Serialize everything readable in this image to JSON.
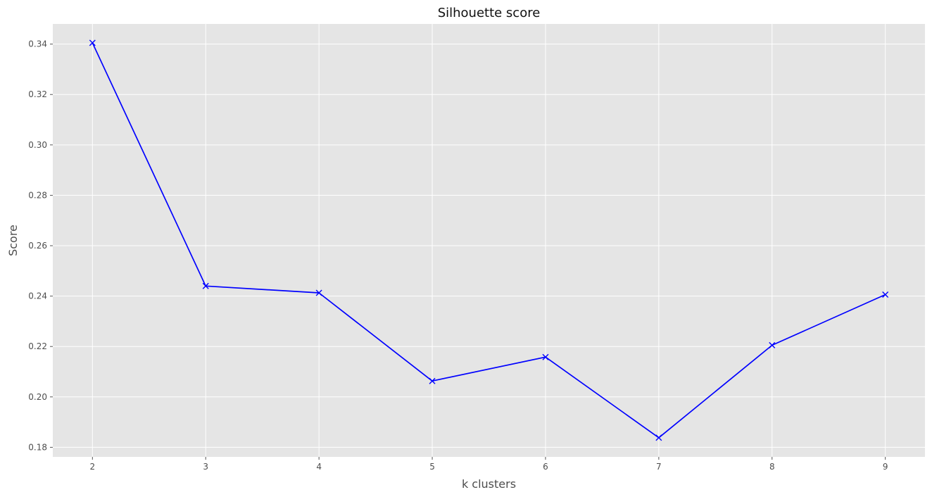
{
  "chart_data": {
    "type": "line",
    "title": "Silhouette score",
    "xlabel": "k clusters",
    "ylabel": "Score",
    "x": [
      2,
      3,
      4,
      5,
      6,
      7,
      8,
      9
    ],
    "series": [
      {
        "values": [
          0.3405,
          0.244,
          0.2413,
          0.2063,
          0.2158,
          0.1838,
          0.2205,
          0.2406
        ],
        "color": "#0000ff",
        "marker": "x"
      }
    ],
    "xlim": [
      1.65,
      9.35
    ],
    "ylim": [
      0.1762,
      0.348
    ],
    "x_ticks": [
      "2",
      "3",
      "4",
      "5",
      "6",
      "7",
      "8",
      "9"
    ],
    "y_ticks": [
      "0.18",
      "0.20",
      "0.22",
      "0.24",
      "0.26",
      "0.28",
      "0.30",
      "0.32",
      "0.34"
    ],
    "grid": true,
    "legend": "none",
    "style": {
      "plot_background": "#e5e5e5",
      "grid_color": "#ffffff"
    }
  }
}
